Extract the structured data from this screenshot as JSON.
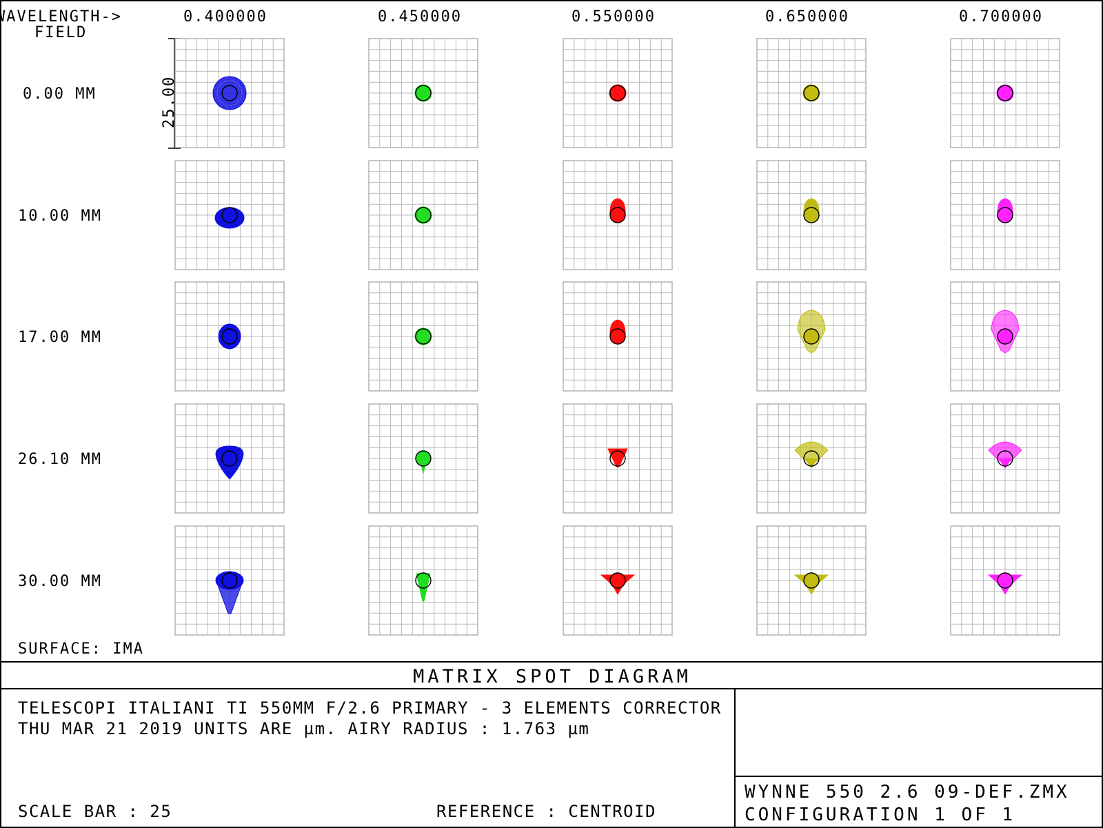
{
  "header": {
    "wavelength_label": "WAVELENGTH->",
    "field_label": "FIELD"
  },
  "wavelengths": [
    "0.400000",
    "0.450000",
    "0.550000",
    "0.650000",
    "0.700000"
  ],
  "fields": [
    "0.00 MM",
    "10.00 MM",
    "17.00 MM",
    "26.10 MM",
    "30.00 MM"
  ],
  "scale_label": "25.00",
  "surface_label": "SURFACE: IMA",
  "plot_title": "MATRIX SPOT DIAGRAM",
  "info": {
    "line1": "TELESCOPI ITALIANI TI  550MM  F/2.6 PRIMARY -  3 ELEMENTS CORRECTOR",
    "line2": "THU MAR 21 2019  UNITS ARE µm.  AIRY RADIUS : 1.763 µm",
    "scale_bar": "SCALE BAR  :      25",
    "reference": "REFERENCE  : CENTROID",
    "file": "WYNNE 550 2.6 09-DEF.ZMX",
    "configuration": "CONFIGURATION 1 OF 1"
  },
  "colors": {
    "wavelength_colors": [
      "#1010e0",
      "#22dd22",
      "#ff1010",
      "#c2bc12",
      "#ff22ff"
    ],
    "grid": "#b9b9b9",
    "frame": "#a8a8a8"
  },
  "spot_shapes": [
    [
      "round-large",
      "round-small",
      "round-small",
      "round-small",
      "round-small"
    ],
    [
      "round-flat",
      "round-small",
      "flare-up",
      "flare-up",
      "flare-up"
    ],
    [
      "round",
      "round-small",
      "flare-up",
      "flare-up-large",
      "flare-up-large"
    ],
    [
      "teardrop-down",
      "round-tail",
      "fan-down",
      "fan-up",
      "fan-up"
    ],
    [
      "comet-down",
      "cone-down",
      "bowtie",
      "bowtie",
      "bowtie"
    ]
  ]
}
